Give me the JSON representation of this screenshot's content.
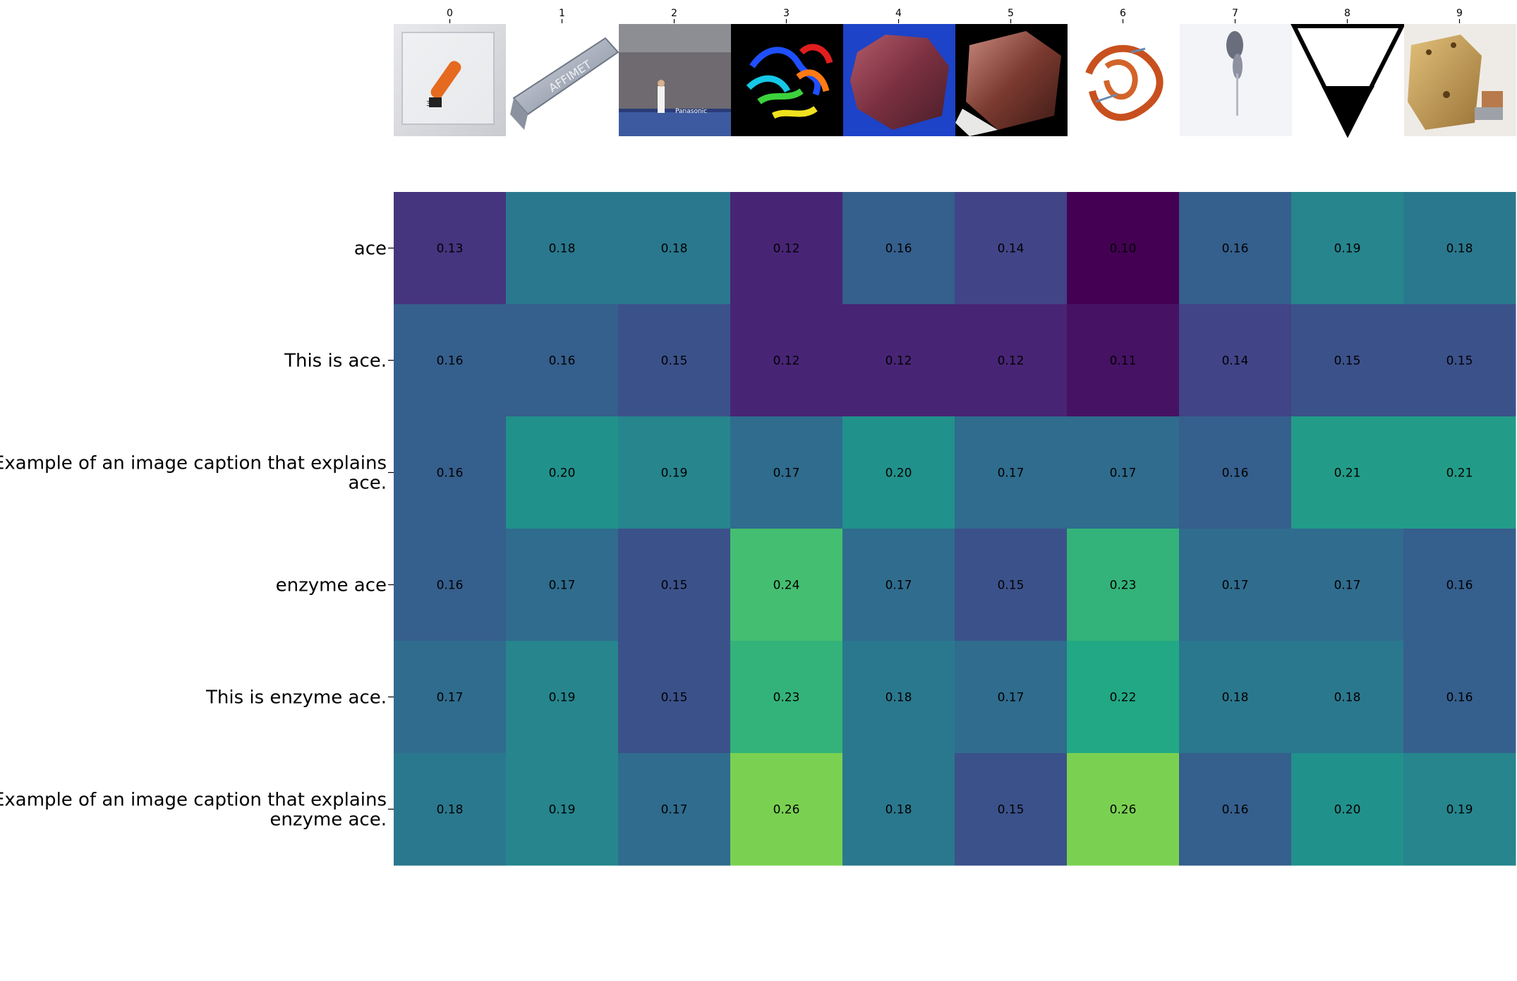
{
  "chart_data": {
    "type": "heatmap",
    "colormap": "viridis",
    "value_range": [
      0.1,
      0.26
    ],
    "grid": false,
    "columns": [
      "0",
      "1",
      "2",
      "3",
      "4",
      "5",
      "6",
      "7",
      "8",
      "9"
    ],
    "column_images": [
      "bromine-in-acrylic-cube",
      "aluminium-ingot-affimet",
      "tennis-player-stadium",
      "rainbow-protein-ribbon",
      "red-mineral-rock-blue-background",
      "red-cubic-crystal-black-background",
      "orange-protein-structure",
      "grey-ink-blot",
      "inverted-triangle-sign",
      "brass-die-with-figurine"
    ],
    "rows": [
      [
        "ace"
      ],
      [
        "This is ace."
      ],
      [
        "Example of an image caption that explains",
        "ace."
      ],
      [
        "enzyme ace"
      ],
      [
        "This is enzyme ace."
      ],
      [
        "Example of an image caption that explains",
        "enzyme ace."
      ]
    ],
    "values": [
      [
        0.13,
        0.18,
        0.18,
        0.12,
        0.16,
        0.14,
        0.1,
        0.16,
        0.19,
        0.18
      ],
      [
        0.16,
        0.16,
        0.15,
        0.12,
        0.12,
        0.12,
        0.11,
        0.14,
        0.15,
        0.15
      ],
      [
        0.16,
        0.2,
        0.19,
        0.17,
        0.2,
        0.17,
        0.17,
        0.16,
        0.21,
        0.21
      ],
      [
        0.16,
        0.17,
        0.15,
        0.24,
        0.17,
        0.15,
        0.23,
        0.17,
        0.17,
        0.16
      ],
      [
        0.17,
        0.19,
        0.15,
        0.23,
        0.18,
        0.17,
        0.22,
        0.18,
        0.18,
        0.16
      ],
      [
        0.18,
        0.19,
        0.17,
        0.26,
        0.18,
        0.15,
        0.26,
        0.16,
        0.2,
        0.19
      ]
    ]
  }
}
